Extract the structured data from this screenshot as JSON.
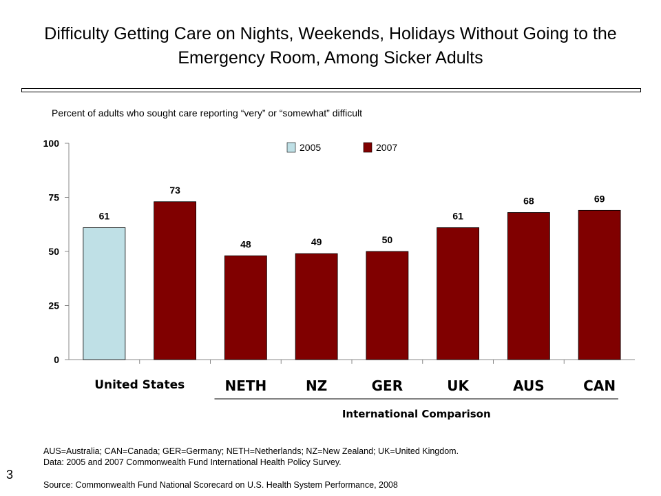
{
  "title": "Difficulty Getting Care on Nights, Weekends, Holidays Without Going to the Emergency Room, Among Sicker Adults",
  "subtitle": "Percent of adults who sought care reporting “very” or “somewhat” difficult",
  "footnote_line1": "AUS=Australia; CAN=Canada; GER=Germany; NETH=Netherlands; NZ=New Zealand; UK=United Kingdom.",
  "footnote_line2": "Data: 2005 and 2007 Commonwealth Fund International Health Policy Survey.",
  "source": "Source: Commonwealth Fund National Scorecard on U.S. Health System Performance, 2008",
  "slide_number": "3",
  "chart_data": {
    "type": "bar",
    "ylim": [
      0,
      100
    ],
    "yticks": [
      "0",
      "25",
      "50",
      "75",
      "100"
    ],
    "legend": [
      {
        "name": "2005",
        "color": "#bfe0e6"
      },
      {
        "name": "2007",
        "color": "#800000"
      }
    ],
    "legend_position": "top-center",
    "grid": false,
    "bars": [
      {
        "series": "2005",
        "group": "United States",
        "value": 61
      },
      {
        "series": "2007",
        "group": "United States",
        "value": 73
      },
      {
        "series": "2007",
        "group": "NETH",
        "value": 48
      },
      {
        "series": "2007",
        "group": "NZ",
        "value": 49
      },
      {
        "series": "2007",
        "group": "GER",
        "value": 50
      },
      {
        "series": "2007",
        "group": "UK",
        "value": 61
      },
      {
        "series": "2007",
        "group": "AUS",
        "value": 68
      },
      {
        "series": "2007",
        "group": "CAN",
        "value": 69
      }
    ],
    "group_labels": [
      "United States",
      "NETH",
      "NZ",
      "GER",
      "UK",
      "AUS",
      "CAN"
    ],
    "group_caption": "International Comparison"
  }
}
